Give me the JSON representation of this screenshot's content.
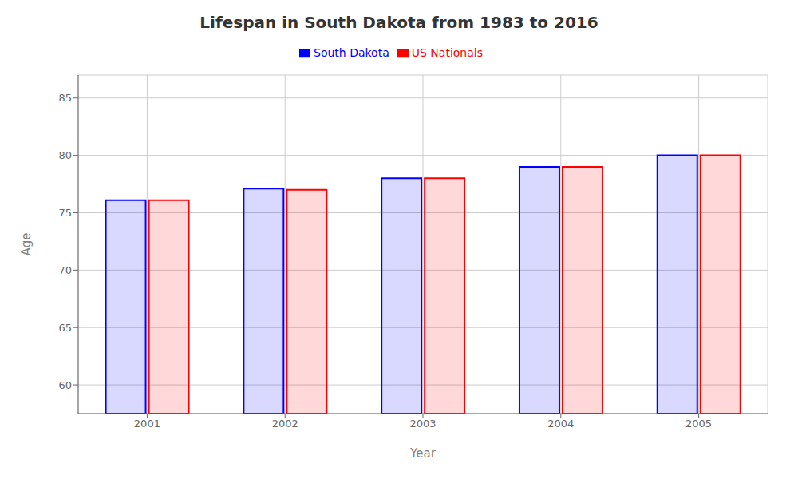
{
  "chart_data": {
    "type": "bar",
    "title": "Lifespan in South Dakota from 1983 to 2016",
    "xlabel": "Year",
    "ylabel": "Age",
    "categories": [
      "2001",
      "2002",
      "2003",
      "2004",
      "2005"
    ],
    "series": [
      {
        "name": "South Dakota",
        "color": "#0000ff",
        "values": [
          76.1,
          77.1,
          78.0,
          79.0,
          80.0
        ]
      },
      {
        "name": "US Nationals",
        "color": "#ff0000",
        "values": [
          76.1,
          77.0,
          78.0,
          79.0,
          80.0
        ]
      }
    ],
    "ylim": [
      57.5,
      87
    ],
    "yticks": [
      60,
      65,
      70,
      75,
      80,
      85
    ],
    "grid": true,
    "legend": "top"
  }
}
